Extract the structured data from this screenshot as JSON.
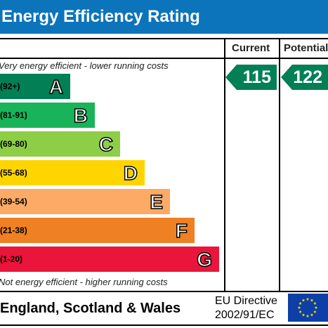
{
  "title": "Energy Efficiency Rating",
  "columns": {
    "current": "Current",
    "potential": "Potential"
  },
  "top_caption": "Very energy efficient - lower running costs",
  "bottom_caption": "Not energy efficient - higher running costs",
  "footer": {
    "country": "England, Scotland & Wales",
    "directive_line1": "EU Directive",
    "directive_line2": "2002/91/EC"
  },
  "colors": {
    "header": "#0c74bb",
    "A": "#008054",
    "B": "#19b459",
    "C": "#8dce46",
    "D": "#ffd500",
    "E": "#fcaa65",
    "F": "#ef8023",
    "G": "#e9153b",
    "eu_flag": "#0d3fa6",
    "eu_star": "#ffdd00"
  },
  "chart_data": {
    "type": "bar",
    "title": "Energy Efficiency Rating",
    "categories": [
      "A",
      "B",
      "C",
      "D",
      "E",
      "F",
      "G"
    ],
    "ranges": [
      "(92+)",
      "(81-91)",
      "(69-80)",
      "(55-68)",
      "(39-54)",
      "(21-38)",
      "(1-20)"
    ],
    "current": {
      "value": 115,
      "band": "A"
    },
    "potential": {
      "value": 122,
      "band": "A"
    }
  }
}
